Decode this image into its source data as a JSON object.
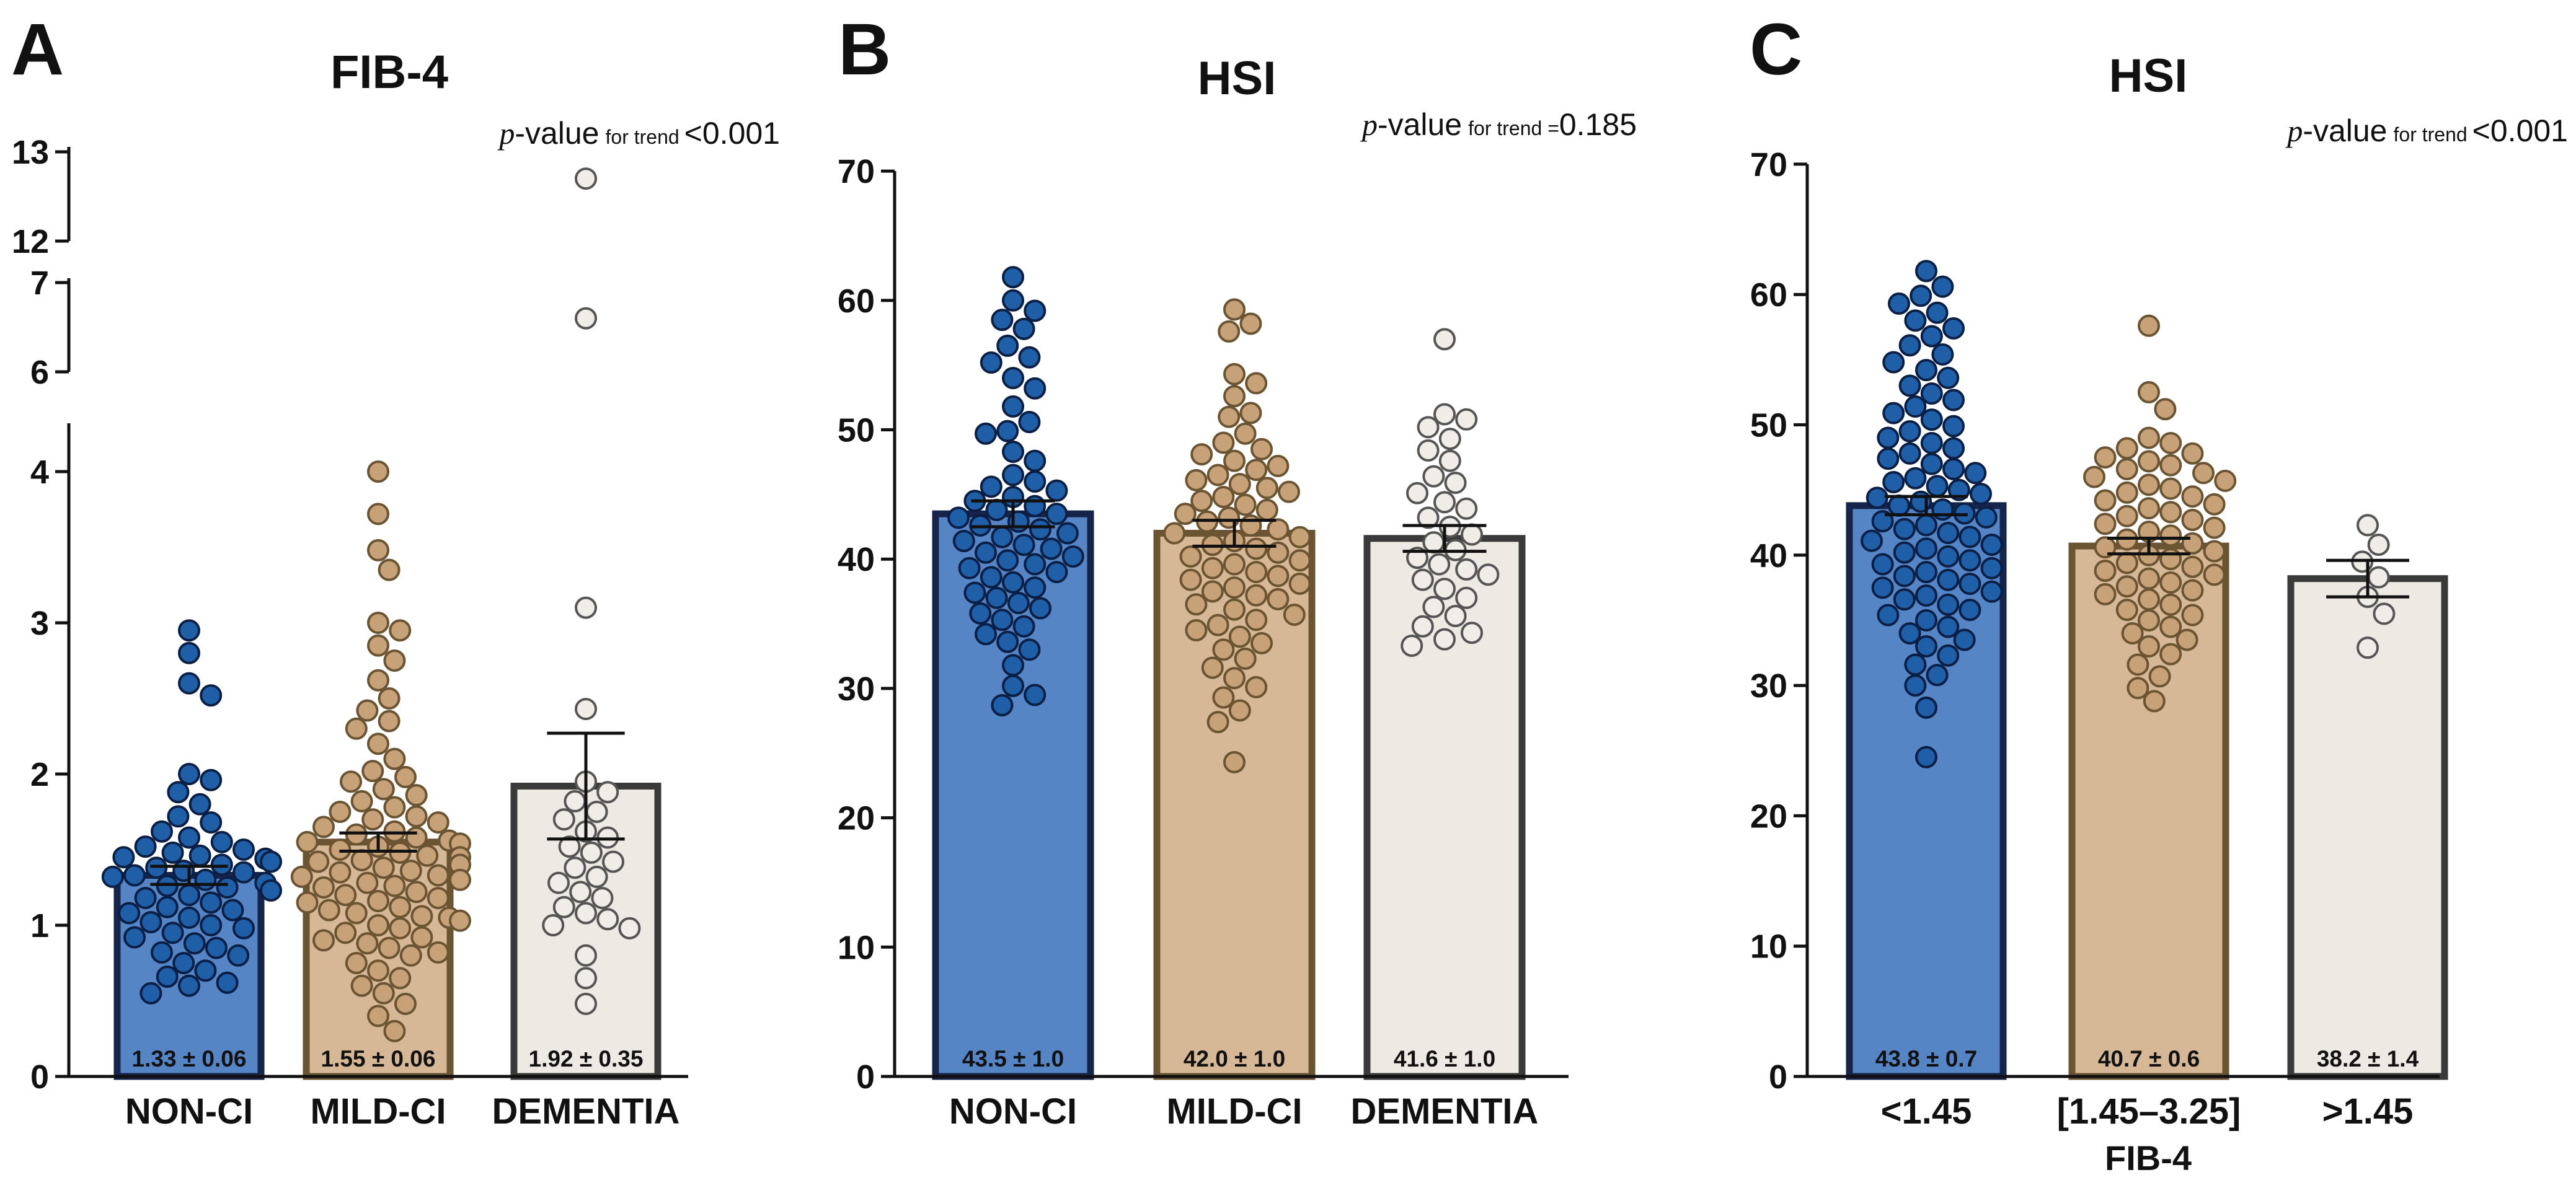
{
  "chart_data": [
    {
      "panel": "A",
      "type": "bar",
      "title": "FIB-4",
      "p_value": {
        "p": "p",
        "word": "-value",
        "sub": "for trend",
        "rel": "<0.001"
      },
      "categories": [
        "NON-CI",
        "MILD-CI",
        "DEMENTIA"
      ],
      "values": [
        1.33,
        1.55,
        1.92
      ],
      "errors": [
        0.06,
        0.06,
        0.35
      ],
      "mean_labels": [
        "1.33 ± 0.06",
        "1.55 ± 0.06",
        "1.92 ± 0.35"
      ],
      "axis_breaks": [
        [
          4.4,
          5.8
        ],
        [
          7.05,
          11.95
        ]
      ],
      "yticks": [
        0,
        1,
        2,
        3,
        4,
        6,
        7,
        12,
        13
      ],
      "ytick_labels": [
        "0",
        "1",
        "2",
        "3",
        "4",
        "6",
        "7",
        "12",
        "13"
      ],
      "xlabel": "",
      "points": [
        [
          2.95,
          2.8,
          2.6,
          2.52,
          2.0,
          1.96,
          1.88,
          1.8,
          1.72,
          1.68,
          1.62,
          1.58,
          1.55,
          1.52,
          1.5,
          1.48,
          1.46,
          1.45,
          1.44,
          1.42,
          1.4,
          1.38,
          1.36,
          1.35,
          1.33,
          1.32,
          1.3,
          1.28,
          1.26,
          1.25,
          1.23,
          1.2,
          1.18,
          1.15,
          1.12,
          1.1,
          1.08,
          1.05,
          1.02,
          1.0,
          0.98,
          0.95,
          0.92,
          0.88,
          0.85,
          0.82,
          0.8,
          0.75,
          0.7,
          0.66,
          0.62,
          0.6,
          0.55
        ],
        [
          4.0,
          3.72,
          3.48,
          3.35,
          3.0,
          2.95,
          2.85,
          2.75,
          2.62,
          2.5,
          2.42,
          2.35,
          2.3,
          2.2,
          2.1,
          2.02,
          1.98,
          1.95,
          1.9,
          1.86,
          1.82,
          1.78,
          1.75,
          1.72,
          1.7,
          1.68,
          1.65,
          1.62,
          1.6,
          1.58,
          1.56,
          1.55,
          1.54,
          1.52,
          1.5,
          1.48,
          1.46,
          1.45,
          1.43,
          1.42,
          1.4,
          1.38,
          1.36,
          1.35,
          1.33,
          1.32,
          1.3,
          1.28,
          1.26,
          1.25,
          1.22,
          1.2,
          1.18,
          1.16,
          1.15,
          1.12,
          1.1,
          1.08,
          1.06,
          1.05,
          1.03,
          1.0,
          0.98,
          0.95,
          0.92,
          0.9,
          0.88,
          0.85,
          0.82,
          0.8,
          0.75,
          0.7,
          0.65,
          0.6,
          0.55,
          0.48,
          0.4,
          0.3
        ],
        [
          12.7,
          6.6,
          3.1,
          2.43,
          1.95,
          1.88,
          1.82,
          1.75,
          1.7,
          1.62,
          1.58,
          1.52,
          1.48,
          1.42,
          1.38,
          1.32,
          1.28,
          1.22,
          1.18,
          1.12,
          1.08,
          1.04,
          1.0,
          0.98,
          0.8,
          0.65,
          0.48
        ]
      ]
    },
    {
      "panel": "B",
      "type": "bar",
      "title": "HSI",
      "p_value": {
        "p": "p",
        "word": "-value",
        "sub": "for trend =",
        "rel": "0.185"
      },
      "categories": [
        "NON-CI",
        "MILD-CI",
        "DEMENTIA"
      ],
      "values": [
        43.5,
        42.0,
        41.6
      ],
      "errors": [
        1.0,
        1.0,
        1.0
      ],
      "mean_labels": [
        "43.5 ± 1.0",
        "42.0 ± 1.0",
        "41.6 ± 1.0"
      ],
      "ylim": [
        0,
        70
      ],
      "yticks": [
        0,
        10,
        20,
        30,
        40,
        50,
        60,
        70
      ],
      "xlabel": "",
      "points": [
        [
          61.8,
          60.0,
          59.2,
          58.5,
          57.8,
          56.5,
          55.6,
          55.2,
          54.0,
          53.2,
          51.8,
          50.6,
          49.9,
          49.7,
          48.3,
          47.6,
          46.5,
          46.0,
          45.6,
          45.3,
          44.8,
          44.5,
          44.1,
          43.8,
          43.5,
          43.2,
          42.9,
          42.6,
          42.3,
          42.0,
          41.7,
          41.4,
          41.1,
          40.8,
          40.5,
          40.2,
          39.9,
          39.6,
          39.3,
          39.0,
          38.6,
          38.2,
          37.8,
          37.4,
          37.0,
          36.6,
          36.2,
          35.8,
          35.3,
          34.8,
          34.2,
          33.6,
          33.0,
          31.8,
          30.2,
          29.5,
          28.7
        ],
        [
          59.3,
          58.2,
          57.6,
          54.3,
          53.6,
          52.6,
          51.3,
          51.0,
          49.7,
          49.0,
          48.5,
          48.1,
          47.6,
          47.2,
          46.9,
          46.5,
          46.1,
          45.8,
          45.5,
          45.2,
          44.8,
          44.5,
          44.2,
          43.8,
          43.5,
          43.2,
          42.9,
          42.6,
          42.3,
          42.0,
          41.7,
          41.4,
          41.1,
          40.8,
          40.5,
          40.2,
          39.9,
          39.6,
          39.3,
          39.0,
          38.7,
          38.4,
          38.1,
          37.8,
          37.5,
          37.2,
          36.9,
          36.5,
          36.1,
          35.7,
          35.3,
          34.9,
          34.5,
          34.0,
          33.5,
          33.0,
          32.3,
          31.6,
          30.8,
          30.1,
          29.3,
          28.3,
          27.4,
          24.3
        ],
        [
          57.0,
          51.2,
          50.8,
          50.2,
          49.3,
          48.4,
          47.6,
          46.4,
          45.9,
          45.1,
          44.4,
          43.9,
          43.2,
          42.5,
          41.9,
          41.3,
          40.7,
          40.1,
          39.6,
          39.2,
          38.8,
          38.4,
          37.7,
          37.0,
          36.3,
          35.6,
          34.8,
          34.3,
          33.8,
          33.3
        ]
      ]
    },
    {
      "panel": "C",
      "type": "bar",
      "title": "HSI",
      "p_value": {
        "p": "p",
        "word": "-value",
        "sub": "for trend",
        "rel": "<0.001"
      },
      "categories": [
        "<1.45",
        "[1.45–3.25]",
        ">1.45"
      ],
      "values": [
        43.8,
        40.7,
        38.2
      ],
      "errors": [
        0.7,
        0.6,
        1.4
      ],
      "mean_labels": [
        "43.8 ± 0.7",
        "40.7 ± 0.6",
        "38.2 ± 1.4"
      ],
      "ylim": [
        0,
        70
      ],
      "yticks": [
        0,
        10,
        20,
        30,
        40,
        50,
        60,
        70
      ],
      "xlabel": "FIB-4",
      "points": [
        [
          61.8,
          60.6,
          59.9,
          59.3,
          58.6,
          58.0,
          57.4,
          56.8,
          56.1,
          55.4,
          54.8,
          54.2,
          53.6,
          53.0,
          52.4,
          51.9,
          51.4,
          50.9,
          50.4,
          49.9,
          49.5,
          49.0,
          48.6,
          48.2,
          47.8,
          47.4,
          47.0,
          46.6,
          46.3,
          45.9,
          45.6,
          45.3,
          45.0,
          44.7,
          44.4,
          44.1,
          43.8,
          43.5,
          43.2,
          42.9,
          42.6,
          42.3,
          42.0,
          41.7,
          41.4,
          41.1,
          40.8,
          40.5,
          40.2,
          39.9,
          39.6,
          39.3,
          39.0,
          38.7,
          38.4,
          38.1,
          37.8,
          37.5,
          37.2,
          36.9,
          36.6,
          36.2,
          35.8,
          35.4,
          35.0,
          34.5,
          34.0,
          33.5,
          33.0,
          32.3,
          31.6,
          30.8,
          30.0,
          28.3,
          24.5
        ],
        [
          57.6,
          52.5,
          51.2,
          49.0,
          48.6,
          48.2,
          47.8,
          47.5,
          47.2,
          46.9,
          46.6,
          46.3,
          46.0,
          45.7,
          45.4,
          45.1,
          44.8,
          44.5,
          44.2,
          43.9,
          43.6,
          43.3,
          43.0,
          42.7,
          42.4,
          42.1,
          41.8,
          41.5,
          41.2,
          40.9,
          40.6,
          40.3,
          40.0,
          39.7,
          39.4,
          39.1,
          38.8,
          38.5,
          38.2,
          37.9,
          37.6,
          37.3,
          37.0,
          36.6,
          36.2,
          35.8,
          35.4,
          35.0,
          34.5,
          34.0,
          33.5,
          33.0,
          32.4,
          31.6,
          30.7,
          29.8,
          28.8
        ],
        [
          42.3,
          40.8,
          39.5,
          38.3,
          36.8,
          35.5,
          32.9
        ]
      ]
    }
  ]
}
